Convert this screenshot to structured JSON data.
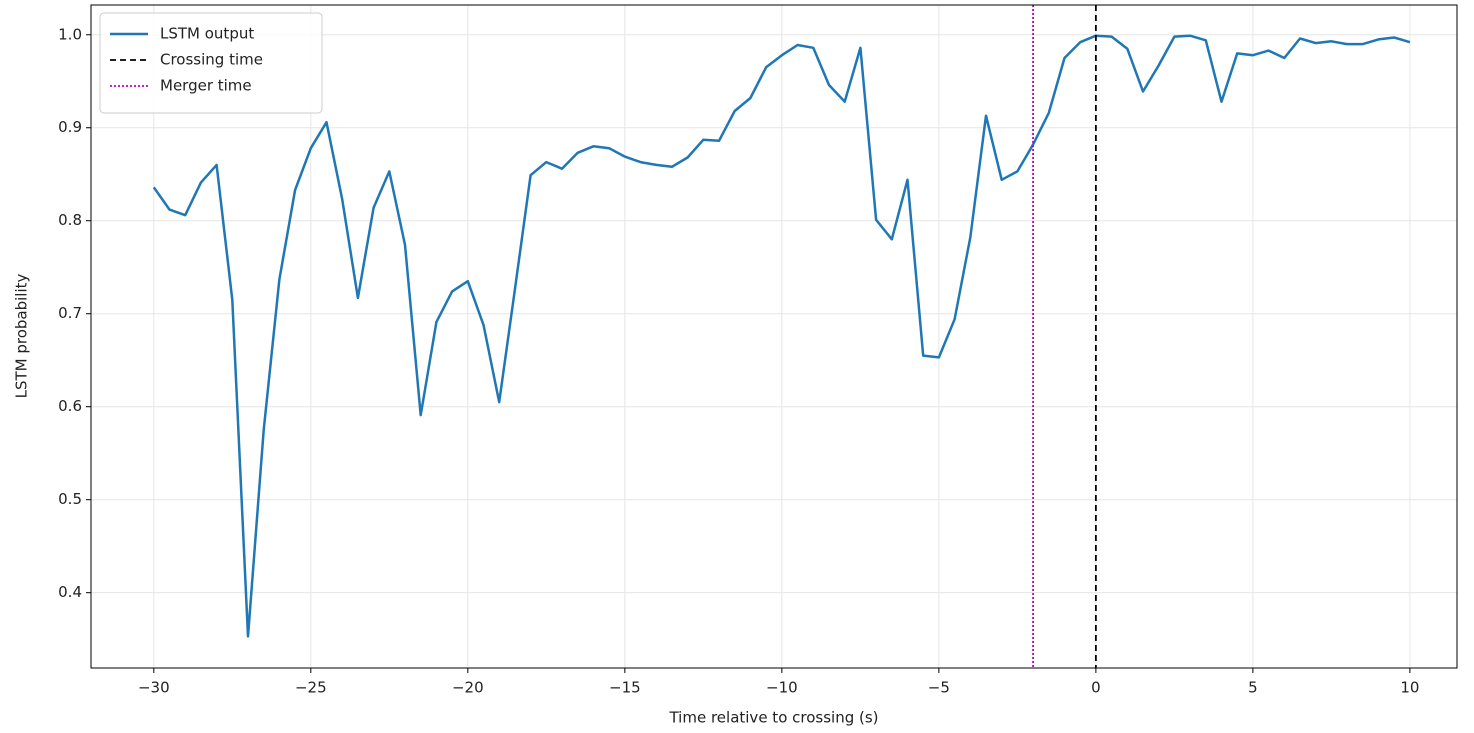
{
  "chart_data": {
    "type": "line",
    "x_label": "Time relative to crossing (s)",
    "y_label": "LSTM probability",
    "x": [
      -30,
      -29.5,
      -29,
      -28.5,
      -28,
      -27.5,
      -27,
      -26.5,
      -26,
      -25.5,
      -25,
      -24.5,
      -24,
      -23.5,
      -23,
      -22.5,
      -22,
      -21.5,
      -21,
      -20.5,
      -20,
      -19.5,
      -19,
      -18.5,
      -18,
      -17.5,
      -17,
      -16.5,
      -16,
      -15.5,
      -15,
      -14.5,
      -14,
      -13.5,
      -13,
      -12.5,
      -12,
      -11.5,
      -11,
      -10.5,
      -10,
      -9.5,
      -9,
      -8.5,
      -8,
      -7.5,
      -7,
      -6.5,
      -6,
      -5.5,
      -5,
      -4.5,
      -4,
      -3.5,
      -3,
      -2.5,
      -2,
      -1.5,
      -1,
      -0.5,
      0,
      0.5,
      1,
      1.5,
      2,
      2.5,
      3,
      3.5,
      4,
      4.5,
      5,
      5.5,
      6,
      6.5,
      7,
      7.5,
      8,
      8.5,
      9,
      9.5,
      10
    ],
    "series": [
      {
        "name": "LSTM output",
        "color": "#1f77b4",
        "values": [
          0.836,
          0.812,
          0.806,
          0.841,
          0.86,
          0.715,
          0.353,
          0.575,
          0.737,
          0.833,
          0.878,
          0.906,
          0.823,
          0.717,
          0.814,
          0.853,
          0.774,
          0.591,
          0.691,
          0.724,
          0.735,
          0.688,
          0.605,
          0.726,
          0.849,
          0.863,
          0.856,
          0.873,
          0.88,
          0.878,
          0.869,
          0.863,
          0.86,
          0.858,
          0.868,
          0.887,
          0.886,
          0.918,
          0.932,
          0.965,
          0.978,
          0.989,
          0.986,
          0.946,
          0.928,
          0.986,
          0.801,
          0.78,
          0.844,
          0.655,
          0.653,
          0.694,
          0.782,
          0.913,
          0.844,
          0.853,
          0.882,
          0.916,
          0.975,
          0.992,
          0.999,
          0.998,
          0.985,
          0.939,
          0.967,
          0.998,
          0.999,
          0.994,
          0.928,
          0.98,
          0.978,
          0.983,
          0.975,
          0.996,
          0.991,
          0.993,
          0.99,
          0.99,
          0.995,
          0.997,
          0.992
        ]
      }
    ],
    "vlines": [
      {
        "name": "Crossing time",
        "x": 0,
        "color": "#000000",
        "dash": "6,4"
      },
      {
        "name": "Merger time",
        "x": -2,
        "color": "#bf00bf",
        "dash": "2,2"
      }
    ],
    "xlim": [
      -32,
      11.5
    ],
    "ylim": [
      0.319,
      1.032
    ],
    "xticks": [
      {
        "value": -30,
        "label": "−30"
      },
      {
        "value": -25,
        "label": "−25"
      },
      {
        "value": -20,
        "label": "−20"
      },
      {
        "value": -15,
        "label": "−15"
      },
      {
        "value": -10,
        "label": "−10"
      },
      {
        "value": -5,
        "label": "−5"
      },
      0,
      5,
      10
    ],
    "yticks": [
      0.4,
      0.5,
      0.6,
      0.7,
      0.8,
      0.9,
      {
        "value": 1,
        "label": "1.0"
      }
    ],
    "grid": true,
    "legend": "upper left"
  }
}
